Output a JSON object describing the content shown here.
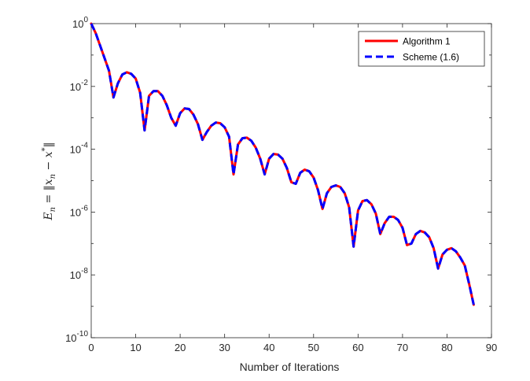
{
  "chart_data": {
    "type": "line",
    "title": "",
    "xlabel": "Number of Iterations",
    "ylabel": "E_n = ||x_n - x*||",
    "ylabel_parts": {
      "lhs": "E",
      "lhs_sub": "n",
      "eq": " = ‖",
      "x1": "x",
      "x1_sub": "n",
      "minus": " − ",
      "x2": "x",
      "x2_sup": "*",
      "close": "‖"
    },
    "xlim": [
      0,
      90
    ],
    "ylim_exponent": [
      -10,
      0
    ],
    "yscale": "log",
    "grid": false,
    "legend_position": "top-right",
    "xticks": [
      "0",
      "10",
      "20",
      "30",
      "40",
      "50",
      "60",
      "70",
      "80",
      "90"
    ],
    "yticks": [
      {
        "base": "10",
        "exp": "0"
      },
      {
        "base": "10",
        "exp": "-2"
      },
      {
        "base": "10",
        "exp": "-4"
      },
      {
        "base": "10",
        "exp": "-6"
      },
      {
        "base": "10",
        "exp": "-8"
      },
      {
        "base": "10",
        "exp": "-10"
      }
    ],
    "x": [
      0,
      1,
      2,
      3,
      4,
      5,
      6,
      7,
      8,
      9,
      10,
      11,
      12,
      13,
      14,
      15,
      16,
      17,
      18,
      19,
      20,
      21,
      22,
      23,
      24,
      25,
      26,
      27,
      28,
      29,
      30,
      31,
      32,
      33,
      34,
      35,
      36,
      37,
      38,
      39,
      40,
      41,
      42,
      43,
      44,
      45,
      46,
      47,
      48,
      49,
      50,
      51,
      52,
      53,
      54,
      55,
      56,
      57,
      58,
      59,
      60,
      61,
      62,
      63,
      64,
      65,
      66,
      67,
      68,
      69,
      70,
      71,
      72,
      73,
      74,
      75,
      76,
      77,
      78,
      79,
      80,
      81,
      82,
      83,
      84,
      85,
      86
    ],
    "series": [
      {
        "name": "Algorithm 1",
        "color": "#ff0000",
        "style": "solid",
        "log10_values": [
          0,
          -0.3,
          -0.7,
          -1.1,
          -1.5,
          -2.35,
          -1.9,
          -1.62,
          -1.55,
          -1.6,
          -1.75,
          -2.2,
          -3.4,
          -2.3,
          -2.15,
          -2.15,
          -2.3,
          -2.6,
          -3.0,
          -3.25,
          -2.85,
          -2.7,
          -2.72,
          -2.9,
          -3.2,
          -3.7,
          -3.45,
          -3.25,
          -3.15,
          -3.17,
          -3.3,
          -3.6,
          -4.8,
          -3.85,
          -3.65,
          -3.63,
          -3.73,
          -3.95,
          -4.3,
          -4.8,
          -4.3,
          -4.15,
          -4.17,
          -4.3,
          -4.6,
          -5.05,
          -5.1,
          -4.75,
          -4.65,
          -4.7,
          -4.9,
          -5.3,
          -5.9,
          -5.4,
          -5.2,
          -5.15,
          -5.2,
          -5.4,
          -5.85,
          -7.1,
          -5.95,
          -5.65,
          -5.62,
          -5.75,
          -6.05,
          -6.7,
          -6.35,
          -6.15,
          -6.15,
          -6.25,
          -6.5,
          -7.05,
          -7.0,
          -6.7,
          -6.6,
          -6.65,
          -6.8,
          -7.15,
          -7.8,
          -7.35,
          -7.2,
          -7.15,
          -7.25,
          -7.45,
          -7.7,
          -8.3,
          -8.95
        ]
      },
      {
        "name": "Scheme (1.6)",
        "color": "#0000ff",
        "style": "dashed",
        "log10_values": [
          0,
          -0.3,
          -0.7,
          -1.1,
          -1.5,
          -2.35,
          -1.9,
          -1.62,
          -1.55,
          -1.6,
          -1.75,
          -2.2,
          -3.4,
          -2.3,
          -2.15,
          -2.15,
          -2.3,
          -2.6,
          -3.0,
          -3.25,
          -2.85,
          -2.7,
          -2.72,
          -2.9,
          -3.2,
          -3.7,
          -3.45,
          -3.25,
          -3.15,
          -3.17,
          -3.3,
          -3.6,
          -4.8,
          -3.85,
          -3.65,
          -3.63,
          -3.73,
          -3.95,
          -4.3,
          -4.8,
          -4.3,
          -4.15,
          -4.17,
          -4.3,
          -4.6,
          -5.05,
          -5.1,
          -4.75,
          -4.65,
          -4.7,
          -4.9,
          -5.3,
          -5.9,
          -5.4,
          -5.2,
          -5.15,
          -5.2,
          -5.4,
          -5.85,
          -7.1,
          -5.95,
          -5.65,
          -5.62,
          -5.75,
          -6.05,
          -6.7,
          -6.35,
          -6.15,
          -6.15,
          -6.25,
          -6.5,
          -7.05,
          -7.0,
          -6.7,
          -6.6,
          -6.65,
          -6.8,
          -7.15,
          -7.8,
          -7.35,
          -7.2,
          -7.15,
          -7.25,
          -7.45,
          -7.7,
          -8.3,
          -8.95
        ]
      }
    ]
  }
}
